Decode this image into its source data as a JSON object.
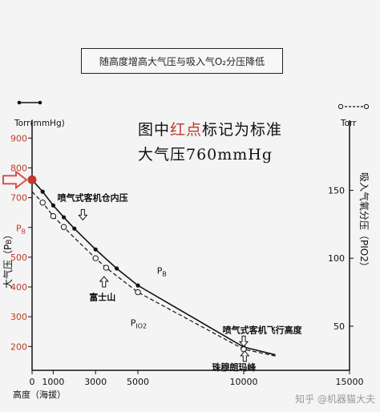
{
  "title": "随高度增高大气压与吸入气O₂分压降低",
  "annotation": {
    "line1_before": "图中",
    "line1_red": "红点",
    "line1_after": "标记为标准",
    "line2": "大气压760mmHg"
  },
  "watermark": "知乎 @机器猫大夫",
  "colors": {
    "highlight": "#c0392b",
    "arrow": "#d9534f",
    "ink": "#111111"
  },
  "chart_data": {
    "type": "line",
    "left_axis": {
      "unit": "Torr(mmHg)",
      "label": "大气压（P",
      "label_sub": "B",
      "label_close": "）",
      "ticks": [
        200,
        300,
        400,
        500,
        600,
        700,
        800,
        900
      ],
      "tick_labels": [
        "200",
        "300",
        "400",
        "500",
        "",
        "700",
        "800",
        "900"
      ],
      "tick_pb_label": "P",
      "tick_pb_sub": "B",
      "ylim": [
        120,
        960
      ]
    },
    "right_axis": {
      "unit": "Torr",
      "label": "吸入气氧分压（PIO2）",
      "ticks": [
        50,
        100,
        150
      ],
      "ylim": [
        17.5,
        201.6
      ]
    },
    "x_axis": {
      "label": "高度（海拔）",
      "ticks": [
        0,
        1000,
        3000,
        5000,
        10000,
        15000
      ],
      "tick_labels": [
        "0",
        "1000",
        "3000",
        "5000",
        "10000",
        "15000"
      ],
      "xlim": [
        0,
        15000
      ]
    },
    "series": [
      {
        "name": "PB",
        "axis": "left",
        "style": "solid",
        "marker": "filled",
        "x": [
          0,
          500,
          1000,
          1500,
          2000,
          3000,
          4000,
          5000,
          10000,
          11500
        ],
        "y": [
          760,
          720,
          674,
          634,
          596,
          526,
          462,
          405,
          198,
          172
        ],
        "marker_x": [
          0,
          500,
          1000,
          1500,
          2000,
          3000,
          4000,
          5000,
          10000
        ]
      },
      {
        "name": "PIO2",
        "axis": "right",
        "style": "dashed",
        "marker": "open",
        "x": [
          0,
          500,
          1000,
          1500,
          2000,
          3000,
          3500,
          5000,
          10000,
          11500
        ],
        "y": [
          149,
          141,
          131,
          123,
          115,
          100,
          93,
          75,
          33,
          28
        ],
        "marker_x": [
          500,
          1000,
          1500,
          3000,
          3500,
          5000,
          10000
        ]
      }
    ],
    "labels": [
      {
        "text": "喷气式客机仓内压",
        "x": 1200,
        "yL": 690
      },
      {
        "text": "富士山",
        "x": 2700,
        "yL": 355
      },
      {
        "text": "喷气式客机飞行高度",
        "x": 9000,
        "yL": 245
      },
      {
        "text": "珠穆朗玛峰",
        "x": 8500,
        "yL": 120
      },
      {
        "text": "P",
        "sub": "B",
        "x": 5900,
        "yL": 445
      },
      {
        "text": "P",
        "sub": "IO2",
        "x": 4650,
        "yL": 270
      }
    ],
    "highlight_point": {
      "x": 0,
      "y": 760,
      "axis": "left"
    },
    "grid": false
  }
}
